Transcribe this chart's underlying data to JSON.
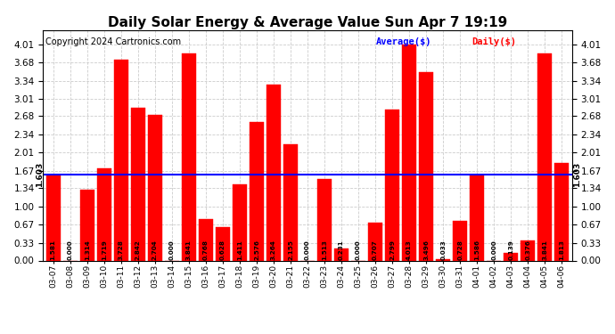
{
  "title": "Daily Solar Energy & Average Value Sun Apr 7 19:19",
  "copyright": "Copyright 2024 Cartronics.com",
  "average_label": "Average($)",
  "daily_label": "Daily($)",
  "average_value": 1.603,
  "categories": [
    "03-07",
    "03-08",
    "03-09",
    "03-10",
    "03-11",
    "03-12",
    "03-13",
    "03-14",
    "03-15",
    "03-16",
    "03-17",
    "03-18",
    "03-19",
    "03-20",
    "03-21",
    "03-22",
    "03-23",
    "03-24",
    "03-25",
    "03-26",
    "03-27",
    "03-28",
    "03-29",
    "03-30",
    "03-31",
    "04-01",
    "04-02",
    "04-03",
    "04-04",
    "04-05",
    "04-06"
  ],
  "values": [
    1.581,
    0.0,
    1.314,
    1.719,
    3.728,
    2.842,
    2.704,
    0.0,
    3.841,
    0.768,
    0.628,
    1.411,
    2.576,
    3.264,
    2.155,
    0.0,
    1.513,
    0.231,
    0.0,
    0.707,
    2.799,
    4.013,
    3.496,
    0.033,
    0.728,
    1.586,
    0.0,
    0.139,
    0.376,
    3.841,
    1.813
  ],
  "bar_color": "#ff0000",
  "average_line_color": "#0000ff",
  "bg_color": "#ffffff",
  "grid_color": "#cccccc",
  "title_color": "#000000",
  "title_fontsize": 11,
  "copyright_fontsize": 7,
  "tick_label_fontsize": 6.5,
  "value_label_fontsize": 5.2,
  "ytick_fontsize": 7.5,
  "ylim_max": 4.28,
  "yticks": [
    0.0,
    0.33,
    0.67,
    1.0,
    1.34,
    1.67,
    2.01,
    2.34,
    2.68,
    3.01,
    3.34,
    3.68,
    4.01
  ]
}
